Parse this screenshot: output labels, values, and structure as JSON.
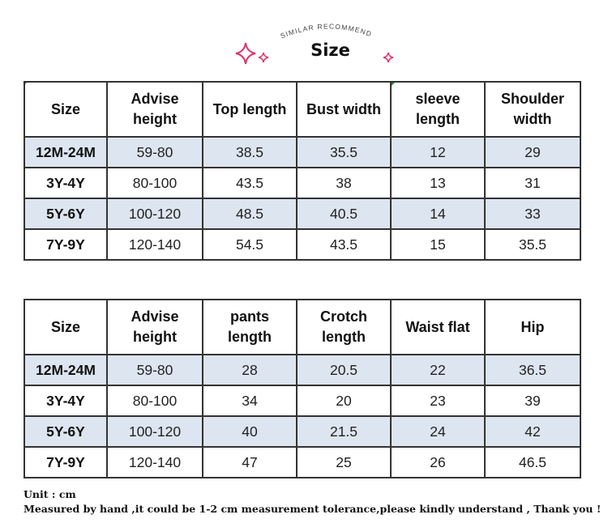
{
  "header": {
    "arc_text": "SIMILAR RECOMMEND",
    "title": "Size",
    "sparkle_color": "#e0336e"
  },
  "table1": {
    "headers": [
      "Size",
      "Advise height",
      "Top length",
      "Bust width",
      "sleeve length",
      "Shoulder width"
    ],
    "rows": [
      [
        "12M-24M",
        "59-80",
        "38.5",
        "35.5",
        "12",
        "29"
      ],
      [
        "3Y-4Y",
        "80-100",
        "43.5",
        "38",
        "13",
        "31"
      ],
      [
        "5Y-6Y",
        "100-120",
        "48.5",
        "40.5",
        "14",
        "33"
      ],
      [
        "7Y-9Y",
        "120-140",
        "54.5",
        "43.5",
        "15",
        "35.5"
      ]
    ]
  },
  "table2": {
    "headers": [
      "Size",
      "Advise height",
      "pants length",
      "Crotch length",
      "Waist flat",
      "Hip"
    ],
    "rows": [
      [
        "12M-24M",
        "59-80",
        "28",
        "20.5",
        "22",
        "36.5"
      ],
      [
        "3Y-4Y",
        "80-100",
        "34",
        "20",
        "23",
        "39"
      ],
      [
        "5Y-6Y",
        "100-120",
        "40",
        "21.5",
        "24",
        "42"
      ],
      [
        "7Y-9Y",
        "120-140",
        "47",
        "25",
        "26",
        "46.5"
      ]
    ]
  },
  "notes": {
    "unit": "Unit : cm",
    "disclaimer": "Measured by hand ,it could be 1-2 cm measurement tolerance,please kindly understand , Thank you !"
  },
  "colors": {
    "shaded_row": "#dde5f0",
    "border": "#333333"
  }
}
